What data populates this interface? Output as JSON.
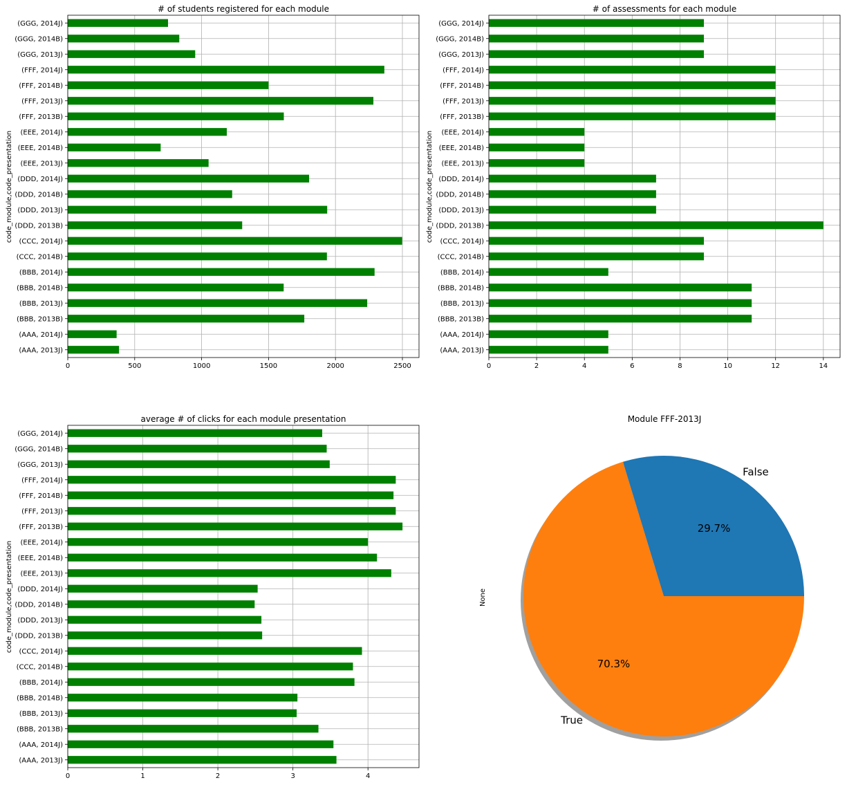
{
  "chart_data": [
    {
      "type": "bar",
      "orientation": "horizontal",
      "title": "# of students registered for each module",
      "ylabel": "code_module,code_presentation",
      "xlabel": "",
      "categories": [
        "(AAA, 2013J)",
        "(AAA, 2014J)",
        "(BBB, 2013B)",
        "(BBB, 2013J)",
        "(BBB, 2014B)",
        "(BBB, 2014J)",
        "(CCC, 2014B)",
        "(CCC, 2014J)",
        "(DDD, 2013B)",
        "(DDD, 2013J)",
        "(DDD, 2014B)",
        "(DDD, 2014J)",
        "(EEE, 2013J)",
        "(EEE, 2014B)",
        "(EEE, 2014J)",
        "(FFF, 2013B)",
        "(FFF, 2013J)",
        "(FFF, 2014B)",
        "(FFF, 2014J)",
        "(GGG, 2013J)",
        "(GGG, 2014B)",
        "(GGG, 2014J)"
      ],
      "values": [
        383,
        365,
        1767,
        2237,
        1613,
        2292,
        1936,
        2498,
        1303,
        1938,
        1228,
        1803,
        1052,
        694,
        1188,
        1614,
        2283,
        1500,
        2365,
        952,
        833,
        749
      ],
      "xlim": [
        0,
        2624
      ],
      "xticks": [
        0,
        500,
        1000,
        1500,
        2000,
        2500
      ],
      "color": "#008000",
      "grid": true
    },
    {
      "type": "bar",
      "orientation": "horizontal",
      "title": "# of assessments for each module",
      "ylabel": "code_module,code_presentation",
      "xlabel": "",
      "categories": [
        "(AAA, 2013J)",
        "(AAA, 2014J)",
        "(BBB, 2013B)",
        "(BBB, 2013J)",
        "(BBB, 2014B)",
        "(BBB, 2014J)",
        "(CCC, 2014B)",
        "(CCC, 2014J)",
        "(DDD, 2013B)",
        "(DDD, 2013J)",
        "(DDD, 2014B)",
        "(DDD, 2014J)",
        "(EEE, 2013J)",
        "(EEE, 2014B)",
        "(EEE, 2014J)",
        "(FFF, 2013B)",
        "(FFF, 2013J)",
        "(FFF, 2014B)",
        "(FFF, 2014J)",
        "(GGG, 2013J)",
        "(GGG, 2014B)",
        "(GGG, 2014J)"
      ],
      "values": [
        5,
        5,
        11,
        11,
        11,
        5,
        9,
        9,
        14,
        7,
        7,
        7,
        4,
        4,
        4,
        12,
        12,
        12,
        12,
        9,
        9,
        9
      ],
      "xlim": [
        0,
        14.7
      ],
      "xticks": [
        0,
        2,
        4,
        6,
        8,
        10,
        12,
        14
      ],
      "color": "#008000",
      "grid": true
    },
    {
      "type": "bar",
      "orientation": "horizontal",
      "title": "average # of clicks for each module presentation",
      "ylabel": "code_module,code_presentation",
      "xlabel": "",
      "categories": [
        "(AAA, 2013J)",
        "(AAA, 2014J)",
        "(BBB, 2013B)",
        "(BBB, 2013J)",
        "(BBB, 2014B)",
        "(BBB, 2014J)",
        "(CCC, 2014B)",
        "(CCC, 2014J)",
        "(DDD, 2013B)",
        "(DDD, 2013J)",
        "(DDD, 2014B)",
        "(DDD, 2014J)",
        "(EEE, 2013J)",
        "(EEE, 2014B)",
        "(EEE, 2014J)",
        "(FFF, 2013B)",
        "(FFF, 2013J)",
        "(FFF, 2014B)",
        "(FFF, 2014J)",
        "(GGG, 2013J)",
        "(GGG, 2014B)",
        "(GGG, 2014J)"
      ],
      "values": [
        3.58,
        3.54,
        3.34,
        3.05,
        3.06,
        3.82,
        3.8,
        3.92,
        2.59,
        2.58,
        2.49,
        2.53,
        4.31,
        4.12,
        4.0,
        4.46,
        4.37,
        4.34,
        4.37,
        3.49,
        3.45,
        3.39
      ],
      "xlim": [
        0,
        4.68
      ],
      "xticks": [
        0,
        1,
        2,
        3,
        4
      ],
      "color": "#008000",
      "grid": true
    },
    {
      "type": "pie",
      "title": "Module FFF-2013J",
      "ylabel": "None",
      "slices": [
        {
          "label": "False",
          "value": 29.7,
          "pct_label": "29.7%",
          "color": "#1f77b4"
        },
        {
          "label": "True",
          "value": 70.3,
          "pct_label": "70.3%",
          "color": "#ff7f0e"
        }
      ],
      "shadow": true
    }
  ]
}
